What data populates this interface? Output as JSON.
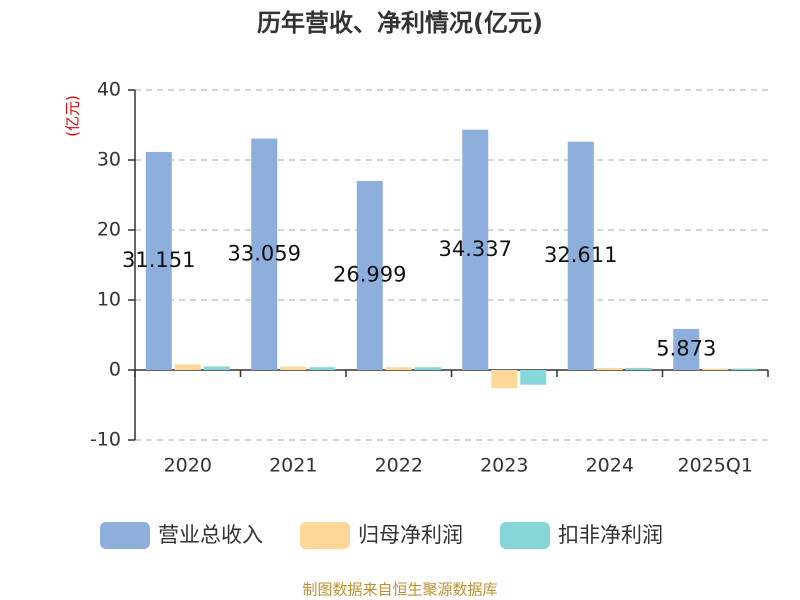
{
  "chart_data": {
    "type": "bar",
    "title": "历年营收、净利情况(亿元)",
    "y_label": "(亿元)",
    "categories": [
      "2020",
      "2021",
      "2022",
      "2023",
      "2024",
      "2025Q1"
    ],
    "series": [
      {
        "name": "营业总收入",
        "color": "#8eaedb",
        "values": [
          31.151,
          33.059,
          26.999,
          34.337,
          32.611,
          5.873
        ]
      },
      {
        "name": "归母净利润",
        "color": "#fdd898",
        "values": [
          0.8,
          0.5,
          0.4,
          -2.6,
          0.3,
          0.2
        ]
      },
      {
        "name": "扣非净利润",
        "color": "#86d5d8",
        "values": [
          0.5,
          0.4,
          0.4,
          -2.1,
          0.3,
          0.2
        ]
      }
    ],
    "labeled_series": 0,
    "ylim": [
      -10,
      40
    ],
    "yticks": [
      -10,
      0,
      10,
      20,
      30,
      40
    ],
    "grid": true,
    "source": "制图数据来自恒生聚源数据库"
  }
}
